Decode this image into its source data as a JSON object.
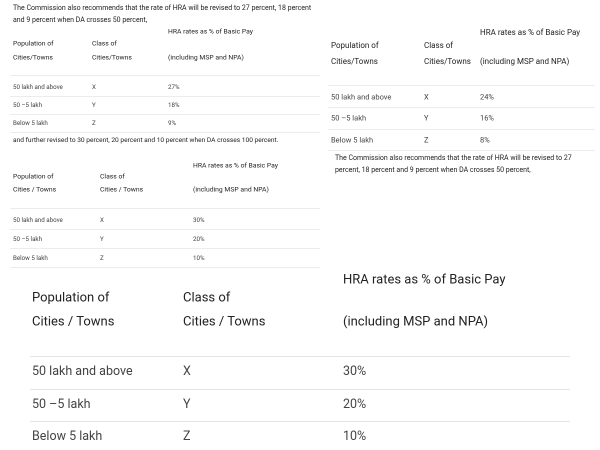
{
  "left": {
    "intro": "The Commission also recommends that the rate of HRA will be revised to 27 percent, 18 percent and 9 percent when DA crosses 50 percent,",
    "table1": {
      "header": [
        [
          "Population of",
          "Cities/Towns"
        ],
        [
          "Class of",
          "Cities/Towns"
        ],
        [
          "HRA rates as % of Basic Pay",
          "(including MSP and NPA)"
        ]
      ],
      "rows": [
        [
          "50 lakh and above",
          "X",
          "27%"
        ],
        [
          "50 –5 lakh",
          "Y",
          "18%"
        ],
        [
          "Below 5 lakh",
          "Z",
          "9%"
        ]
      ]
    },
    "note": "and further revised to 30 percent, 20 percent and 10 percent when DA crosses 100 percent.",
    "table2": {
      "header": [
        [
          "Population of",
          "Cities / Towns"
        ],
        [
          "Class of",
          "Cities / Towns"
        ],
        [
          "HRA rates as % of Basic Pay",
          "(including MSP and NPA)"
        ]
      ],
      "rows": [
        [
          "50 lakh and above",
          "X",
          "30%"
        ],
        [
          "50 –5 lakh",
          "Y",
          "20%"
        ],
        [
          "Below 5 lakh",
          "Z",
          "10%"
        ]
      ]
    }
  },
  "right": {
    "table": {
      "header": [
        [
          "Population of",
          "Cities/Towns"
        ],
        [
          "Class of",
          "Cities/Towns"
        ],
        [
          "HRA rates as % of Basic Pay",
          "(including MSP and NPA)"
        ]
      ],
      "rows": [
        [
          "50 lakh and above",
          "X",
          "24%"
        ],
        [
          "50 –5 lakh",
          "Y",
          "16%"
        ],
        [
          "Below 5 lakh",
          "Z",
          "8%"
        ]
      ]
    },
    "paragraph": "The Commission also recommends that the rate of HRA will be revised to 27 percent, 18 percent and 9 percent when DA crosses 50 percent,"
  },
  "bottom": {
    "table": {
      "header": [
        [
          "Population of",
          "Cities / Towns"
        ],
        [
          "Class of",
          "Cities / Towns"
        ],
        [
          "HRA rates as % of Basic Pay",
          "(including MSP and NPA)"
        ]
      ],
      "rows": [
        [
          "50 lakh and above",
          "X",
          "30%"
        ],
        [
          "50 –5 lakh",
          "Y",
          "20%"
        ],
        [
          "Below 5 lakh",
          "Z",
          "10%"
        ]
      ]
    }
  }
}
